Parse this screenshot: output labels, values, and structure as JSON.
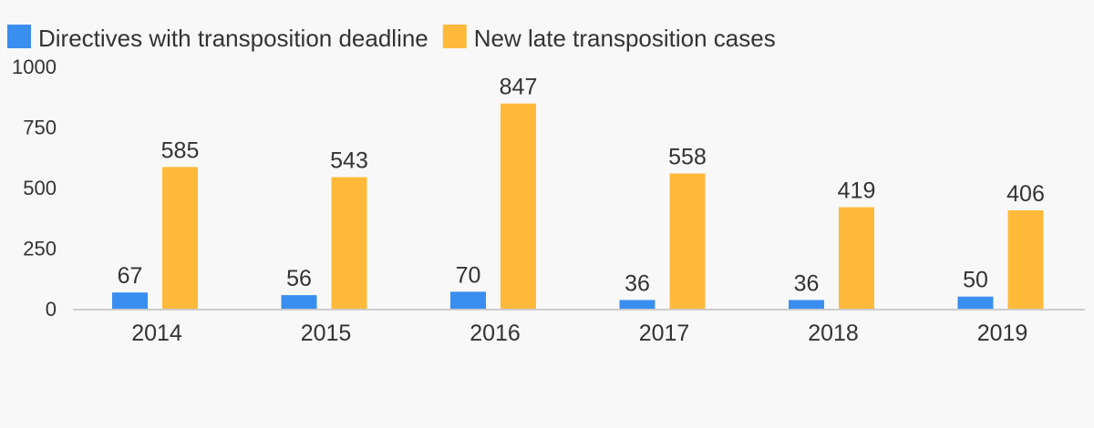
{
  "chart_data": {
    "type": "bar",
    "categories": [
      "2014",
      "2015",
      "2016",
      "2017",
      "2018",
      "2019"
    ],
    "series": [
      {
        "name": "Directives with transposition deadline",
        "color": "#3a8ef0",
        "values": [
          67,
          56,
          70,
          36,
          36,
          50
        ]
      },
      {
        "name": "New late transposition cases",
        "color": "#ffba3b",
        "values": [
          585,
          543,
          847,
          558,
          419,
          406
        ]
      }
    ],
    "ylim": [
      0,
      1000
    ],
    "yticks": [
      "0",
      "250",
      "500",
      "750",
      "1000"
    ],
    "ytick_values": [
      0,
      250,
      500,
      750,
      1000
    ],
    "grid": false,
    "legend_position": "top-left",
    "data_labels": true
  }
}
